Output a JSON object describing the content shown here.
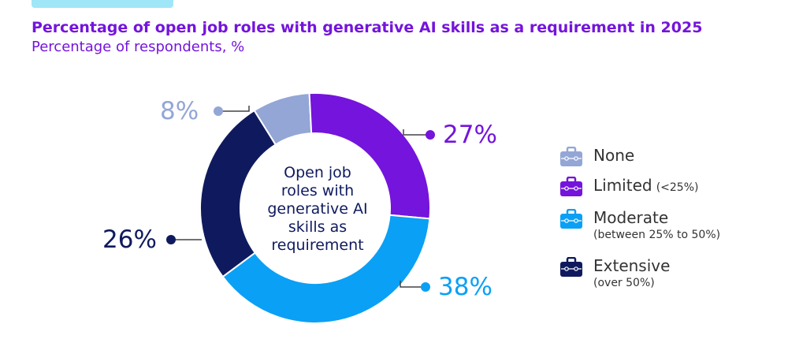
{
  "title": "Percentage of open job roles with generative AI skills as a requirement in 2025",
  "subtitle": "Percentage of respondents, %",
  "center_label": [
    "Open job",
    "roles with",
    "generative AI",
    "skills as",
    "requirement"
  ],
  "chart_data": {
    "type": "pie",
    "variant": "donut",
    "categories": [
      "None",
      "Limited",
      "Moderate",
      "Extensive"
    ],
    "values": [
      8,
      27,
      38,
      26
    ],
    "value_labels": [
      "8%",
      "27%",
      "38%",
      "26%"
    ],
    "colors": [
      "#93a6d6",
      "#7414dc",
      "#0aa0f5",
      "#0f1a5e"
    ],
    "legend_position": "right"
  },
  "legend": [
    {
      "label": "None",
      "note": "",
      "color": "#93a6d6"
    },
    {
      "label": "Limited",
      "note": "(<25%)",
      "color": "#7414dc"
    },
    {
      "label": "Moderate",
      "note": "(between 25% to 50%)",
      "color": "#0aa0f5"
    },
    {
      "label": "Extensive",
      "note": "(over 50%)",
      "color": "#0f1a5e"
    }
  ],
  "legend_icon": "briefcase-icon"
}
